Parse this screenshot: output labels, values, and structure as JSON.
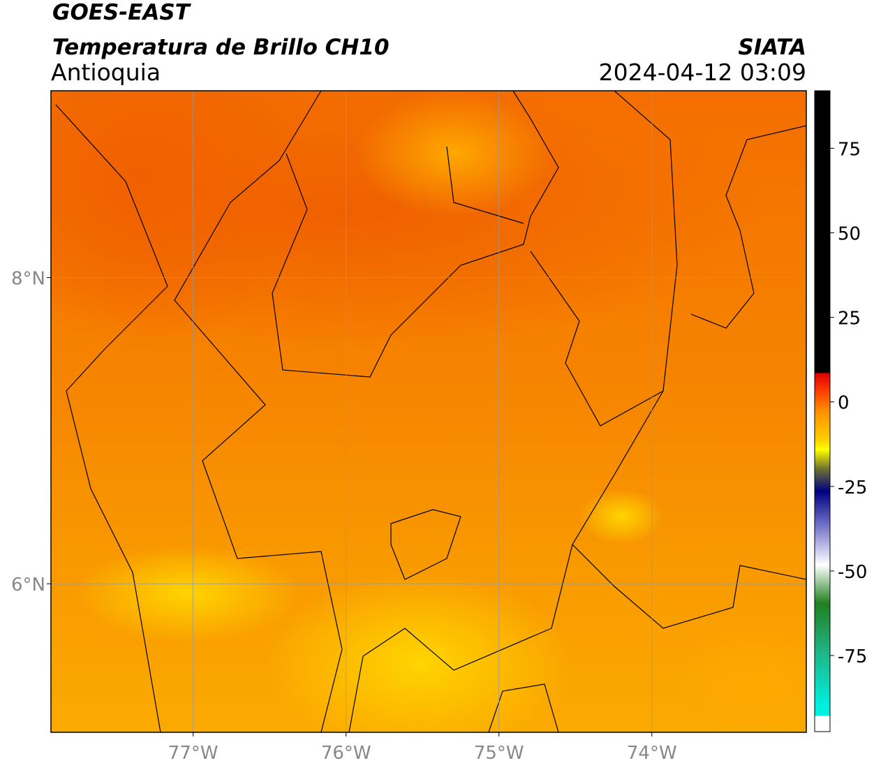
{
  "header": {
    "title": "GOES-EAST",
    "product": "Temperatura de Brillo CH10",
    "region": "Antioquia",
    "source": "SIATA",
    "datetime": "2024-04-12 03:09"
  },
  "map": {
    "lon_range": [
      -77.93,
      -72.99
    ],
    "lat_range": [
      5.03,
      9.22
    ],
    "lon_ticks": [
      {
        "value": -77,
        "label": "77°W"
      },
      {
        "value": -76,
        "label": "76°W"
      },
      {
        "value": -75,
        "label": "75°W"
      },
      {
        "value": -74,
        "label": "74°W"
      }
    ],
    "lat_ticks": [
      {
        "value": 8,
        "label": "8°N"
      },
      {
        "value": 6,
        "label": "6°N"
      }
    ]
  },
  "colorbar": {
    "range": [
      -97.5,
      92
    ],
    "ticks": [
      75,
      50,
      25,
      0,
      -25,
      -50,
      -75
    ]
  }
}
